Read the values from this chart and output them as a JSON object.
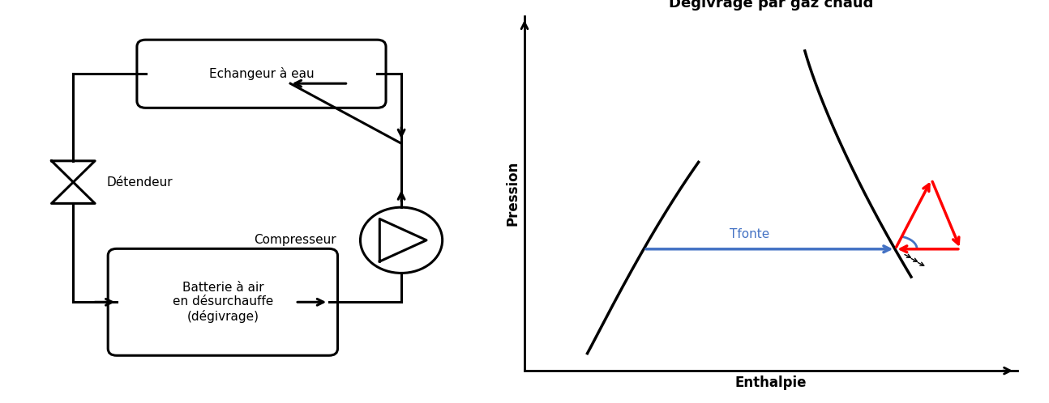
{
  "title": "Dégivrage par gaz chaud",
  "xlabel": "Enthalpie",
  "ylabel": "Pression",
  "tfonte_label": "Tfonte",
  "bg_color": "#ffffff",
  "title_fontsize": 13,
  "label_fontsize": 12,
  "left_labels": {
    "echangeur": "Echangeur à eau",
    "detendeur": "Détendeur",
    "compresseur": "Compresseur",
    "batterie": "Batterie à air\nen désurchauffe\n(dégivrage)"
  },
  "lw": 2.2,
  "black": "#000000",
  "blue": "#4472C4",
  "red": "#FF0000"
}
